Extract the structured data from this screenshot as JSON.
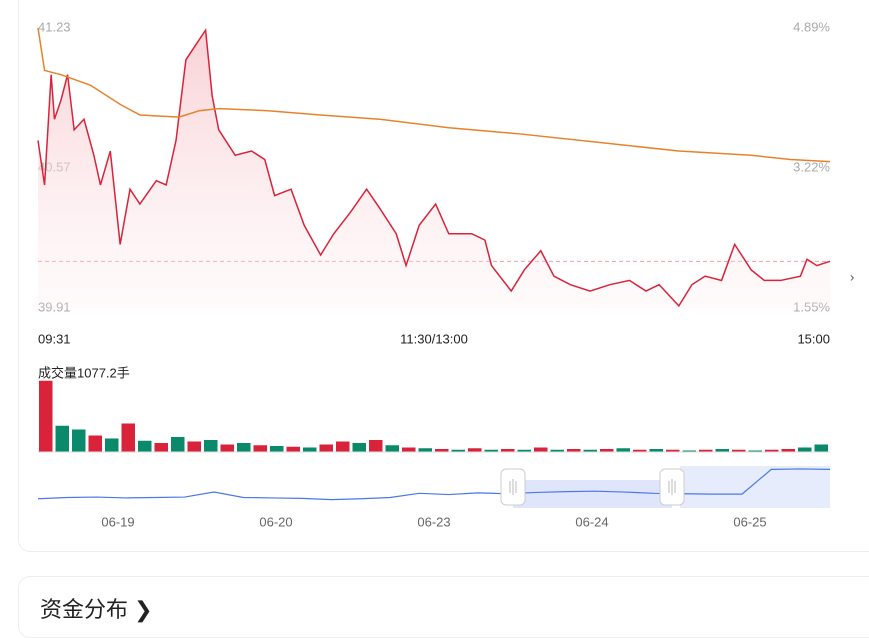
{
  "chart_data": {
    "type": "line",
    "x_labels": [
      "09:31",
      "11:30/13:00",
      "15:00"
    ],
    "xlim": [
      0,
      241
    ],
    "ylim": [
      39.91,
      41.23
    ],
    "yticks": [
      39.91,
      40.57,
      41.23
    ],
    "y2lim": [
      1.55,
      4.89
    ],
    "y2ticks": [
      {
        "value": 1.55,
        "label": "1.55%"
      },
      {
        "value": 3.22,
        "label": "3.22%"
      },
      {
        "value": 4.89,
        "label": "4.89%"
      }
    ],
    "ref_line": 40.13,
    "series": [
      {
        "color": "#d9233a",
        "fill": true,
        "x": [
          0,
          2,
          4,
          5,
          7,
          9,
          11,
          14,
          17,
          19,
          22,
          25,
          28,
          31,
          36,
          39,
          42,
          45,
          48,
          51,
          53,
          55,
          60,
          65,
          69,
          72,
          77,
          81,
          86,
          90,
          95,
          100,
          104,
          109,
          112,
          116,
          121,
          125,
          132,
          136,
          138,
          144,
          148,
          153,
          157,
          162,
          168,
          174,
          180,
          185,
          189,
          195,
          199,
          203,
          208,
          212,
          217,
          221,
          226,
          232,
          234,
          237,
          241
        ],
        "values": [
          40.7,
          40.49,
          41.01,
          40.8,
          40.89,
          41.01,
          40.75,
          40.8,
          40.63,
          40.49,
          40.65,
          40.21,
          40.47,
          40.4,
          40.51,
          40.49,
          40.7,
          41.08,
          41.15,
          41.22,
          40.91,
          40.75,
          40.63,
          40.65,
          40.61,
          40.44,
          40.47,
          40.3,
          40.16,
          40.26,
          40.36,
          40.47,
          40.38,
          40.26,
          40.11,
          40.3,
          40.4,
          40.26,
          40.26,
          40.23,
          40.11,
          39.99,
          40.09,
          40.18,
          40.06,
          40.02,
          39.99,
          40.02,
          40.04,
          39.99,
          40.02,
          39.92,
          40.02,
          40.06,
          40.04,
          40.21,
          40.09,
          40.04,
          40.04,
          40.06,
          40.14,
          40.11,
          40.13
        ]
      },
      {
        "color": "#e8822a",
        "fill": false,
        "x": [
          0,
          2,
          7,
          16,
          25,
          31,
          43,
          49,
          55,
          70,
          86,
          104,
          125,
          147,
          171,
          195,
          217,
          229,
          241
        ],
        "values": [
          41.23,
          41.03,
          41.01,
          40.96,
          40.87,
          40.82,
          40.81,
          40.84,
          40.85,
          40.84,
          40.82,
          40.8,
          40.76,
          40.73,
          40.69,
          40.65,
          40.63,
          40.61,
          40.6
        ]
      }
    ],
    "volume": {
      "label": "成交量1077.2手",
      "ylim": [
        0,
        100
      ],
      "values": [
        95,
        35,
        30,
        22,
        18,
        38,
        15,
        12,
        20,
        14,
        16,
        10,
        12,
        9,
        8,
        7,
        6,
        10,
        14,
        12,
        16,
        9,
        6,
        5,
        4,
        3,
        5,
        3,
        4,
        3,
        6,
        3,
        4,
        3,
        4,
        5,
        3,
        4,
        3,
        2,
        3,
        4,
        3,
        2,
        3,
        4,
        6,
        10
      ],
      "colors": [
        "#d9233a",
        "#0a8a6a",
        "#0a8a6a",
        "#d9233a",
        "#0a8a6a",
        "#d9233a",
        "#0a8a6a",
        "#d9233a",
        "#0a8a6a",
        "#d9233a",
        "#0a8a6a",
        "#d9233a",
        "#0a8a6a",
        "#d9233a",
        "#0a8a6a",
        "#d9233a",
        "#0a8a6a",
        "#d9233a",
        "#d9233a",
        "#0a8a6a",
        "#d9233a",
        "#0a8a6a",
        "#d9233a",
        "#0a8a6a",
        "#d9233a",
        "#0a8a6a",
        "#d9233a",
        "#0a8a6a",
        "#d9233a",
        "#0a8a6a",
        "#d9233a",
        "#0a8a6a",
        "#d9233a",
        "#0a8a6a",
        "#d9233a",
        "#0a8a6a",
        "#d9233a",
        "#0a8a6a",
        "#d9233a",
        "#0a8a6a",
        "#d9233a",
        "#0a8a6a",
        "#d9233a",
        "#0a8a6a",
        "#d9233a",
        "#d9233a",
        "#0a8a6a",
        "#0a8a6a"
      ]
    },
    "navigator": {
      "labels": [
        "06-19",
        "06-20",
        "06-23",
        "06-24",
        "06-25"
      ],
      "ylim": [
        0,
        10
      ],
      "color": "#4a78e8",
      "values": [
        2.2,
        2.5,
        2.6,
        2.4,
        2.5,
        2.6,
        3.8,
        2.5,
        2.4,
        2.3,
        2.0,
        2.2,
        2.5,
        3.5,
        3.2,
        3.6,
        3.4,
        3.7,
        3.9,
        4.0,
        3.8,
        3.5,
        3.4,
        3.3,
        3.3,
        9.2,
        9.3,
        9.2
      ]
    }
  },
  "section_title": "资金分布"
}
